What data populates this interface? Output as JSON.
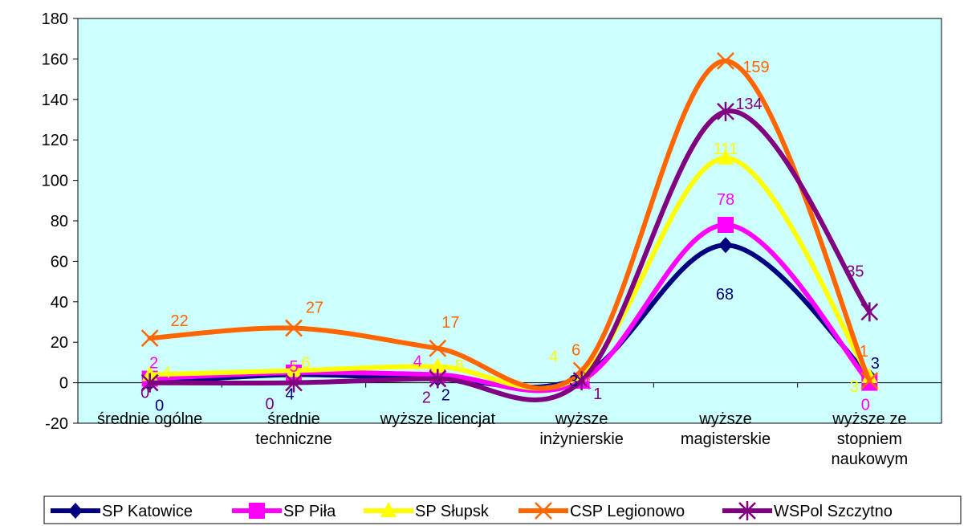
{
  "chart_data": {
    "type": "line",
    "smooth": true,
    "categories": [
      [
        "średnie ogólne"
      ],
      [
        "średnie",
        "techniczne"
      ],
      [
        "wyższe licencjat"
      ],
      [
        "wyższe",
        "inżynierskie"
      ],
      [
        "wyższe",
        "magisterskie"
      ],
      [
        "wyższe ze",
        "stopniem",
        "naukowym"
      ]
    ],
    "ylim": [
      -20,
      180
    ],
    "yticks": [
      -20,
      0,
      20,
      40,
      60,
      80,
      100,
      120,
      140,
      160,
      180
    ],
    "plot_background": "#ccffff",
    "legend_position": "bottom",
    "series": [
      {
        "name": "SP Katowice",
        "color": "#000080",
        "marker": "diamond",
        "values": [
          0,
          4,
          2,
          3,
          68,
          3
        ]
      },
      {
        "name": "SP Piła",
        "color": "#ff00ff",
        "marker": "square",
        "values": [
          2,
          5,
          4,
          1,
          78,
          0
        ]
      },
      {
        "name": "SP Słupsk",
        "color": "#ffff00",
        "marker": "triangle",
        "values": [
          4,
          6,
          8,
          4,
          111,
          3
        ]
      },
      {
        "name": "CSP Legionowo",
        "color": "#ff6600",
        "marker": "x",
        "values": [
          22,
          27,
          17,
          6,
          159,
          1
        ]
      },
      {
        "name": "WSPol Szczytno",
        "color": "#800080",
        "marker": "asterisk",
        "values": [
          0,
          0,
          2,
          1,
          134,
          35
        ]
      }
    ]
  }
}
